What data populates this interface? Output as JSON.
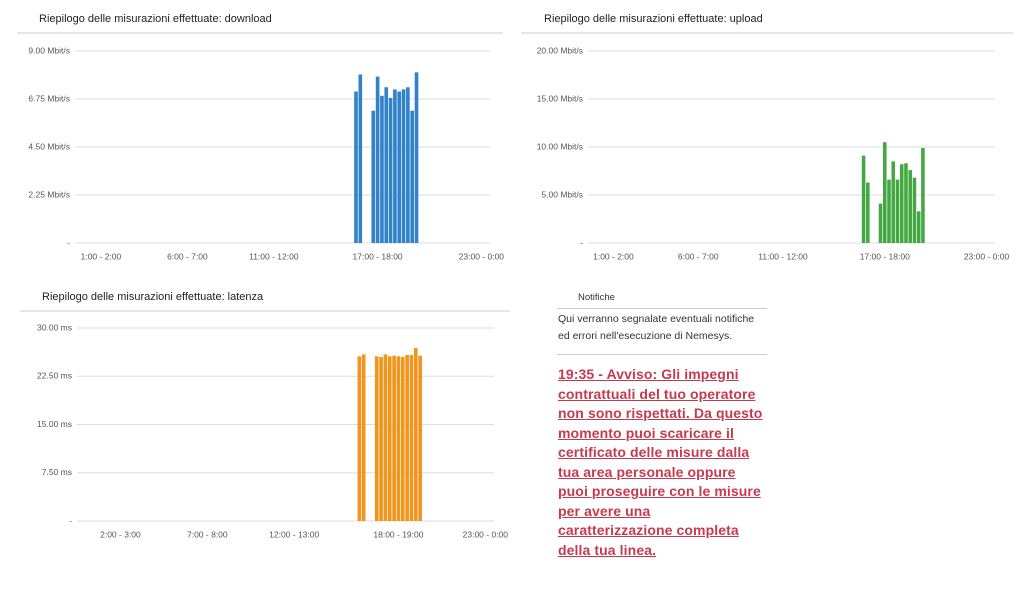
{
  "chart_data": [
    {
      "type": "bar",
      "title": "Riepilogo delle misurazioni effettuate: download",
      "x": [
        16.25,
        16.5,
        17.25,
        17.5,
        17.75,
        18.0,
        18.25,
        18.5,
        18.75,
        19.0,
        19.25,
        19.5,
        19.75
      ],
      "values": [
        7.1,
        7.9,
        6.2,
        7.8,
        6.9,
        7.3,
        6.8,
        7.2,
        7.1,
        7.2,
        7.3,
        6.2,
        8.0
      ],
      "color": "#3182c8",
      "xlim": [
        0,
        24
      ],
      "xticks": [
        {
          "value": 1.5,
          "label": "1:00 - 2:00"
        },
        {
          "value": 6.5,
          "label": "6:00 - 7:00"
        },
        {
          "value": 11.5,
          "label": "11:00 - 12:00"
        },
        {
          "value": 17.5,
          "label": "17:00 - 18:00"
        },
        {
          "value": 23.5,
          "label": "23:00 - 0:00"
        }
      ],
      "ylim": [
        0,
        9
      ],
      "yticks": [
        {
          "value": 0,
          "label": "-"
        },
        {
          "value": 2.25,
          "label": "2.25 Mbit/s"
        },
        {
          "value": 4.5,
          "label": "4.50 Mbit/s"
        },
        {
          "value": 6.75,
          "label": "6.75 Mbit/s"
        },
        {
          "value": 9,
          "label": "9.00 Mbit/s"
        }
      ],
      "grid": true
    },
    {
      "type": "bar",
      "title": "Riepilogo delle misurazioni effettuate: upload",
      "x": [
        16.25,
        16.5,
        17.25,
        17.5,
        17.75,
        18.0,
        18.25,
        18.5,
        18.75,
        19.0,
        19.25,
        19.5,
        19.75
      ],
      "values": [
        9.1,
        6.3,
        4.1,
        10.5,
        6.6,
        8.5,
        6.6,
        8.2,
        8.3,
        7.6,
        6.8,
        3.3,
        9.9
      ],
      "color": "#44a842",
      "xlim": [
        0,
        24
      ],
      "xticks": [
        {
          "value": 1.5,
          "label": "1:00 - 2:00"
        },
        {
          "value": 6.5,
          "label": "6:00 - 7:00"
        },
        {
          "value": 11.5,
          "label": "11:00 - 12:00"
        },
        {
          "value": 17.5,
          "label": "17:00 - 18:00"
        },
        {
          "value": 23.5,
          "label": "23:00 - 0:00"
        }
      ],
      "ylim": [
        0,
        20
      ],
      "yticks": [
        {
          "value": 0,
          "label": "-"
        },
        {
          "value": 5,
          "label": "5.00 Mbit/s"
        },
        {
          "value": 10,
          "label": "10.00 Mbit/s"
        },
        {
          "value": 15,
          "label": "15.00 Mbit/s"
        },
        {
          "value": 20,
          "label": "20.00 Mbit/s"
        }
      ],
      "grid": true
    },
    {
      "type": "bar",
      "title": "Riepilogo delle misurazioni effettuate: latenza",
      "x": [
        16.25,
        16.5,
        17.25,
        17.5,
        17.75,
        18.0,
        18.25,
        18.5,
        18.75,
        19.0,
        19.25,
        19.5,
        19.75
      ],
      "values": [
        25.6,
        25.9,
        25.6,
        25.5,
        25.9,
        25.6,
        25.7,
        25.6,
        25.5,
        25.8,
        25.8,
        26.9,
        25.7
      ],
      "color": "#f0961e",
      "xlim": [
        0,
        24
      ],
      "xticks": [
        {
          "value": 2.5,
          "label": "2:00 - 3:00"
        },
        {
          "value": 7.5,
          "label": "7:00 - 8:00"
        },
        {
          "value": 12.5,
          "label": "12:00 - 13:00"
        },
        {
          "value": 18.5,
          "label": "18:00 - 19:00"
        },
        {
          "value": 23.5,
          "label": "23:00 - 0:00"
        }
      ],
      "ylim": [
        0,
        30
      ],
      "yticks": [
        {
          "value": 0,
          "label": "-"
        },
        {
          "value": 7.5,
          "label": "7.50 ms"
        },
        {
          "value": 15,
          "label": "15.00 ms"
        },
        {
          "value": 22.5,
          "label": "22.50 ms"
        },
        {
          "value": 30,
          "label": "30.00 ms"
        }
      ],
      "grid": true
    }
  ],
  "notifications": {
    "title": "Notifiche",
    "intro": "Qui verranno segnalate eventuali notifiche ed errori nell'esecuzione di Nemesys.",
    "messages": [
      "19:35 - Avviso: Gli impegni contrattuali del tuo operatore non sono rispettati. Da questo momento puoi scaricare il certificato delle misure dalla tua area personale oppure puoi proseguire con le misure per avere una caratterizzazione completa della tua linea."
    ]
  }
}
